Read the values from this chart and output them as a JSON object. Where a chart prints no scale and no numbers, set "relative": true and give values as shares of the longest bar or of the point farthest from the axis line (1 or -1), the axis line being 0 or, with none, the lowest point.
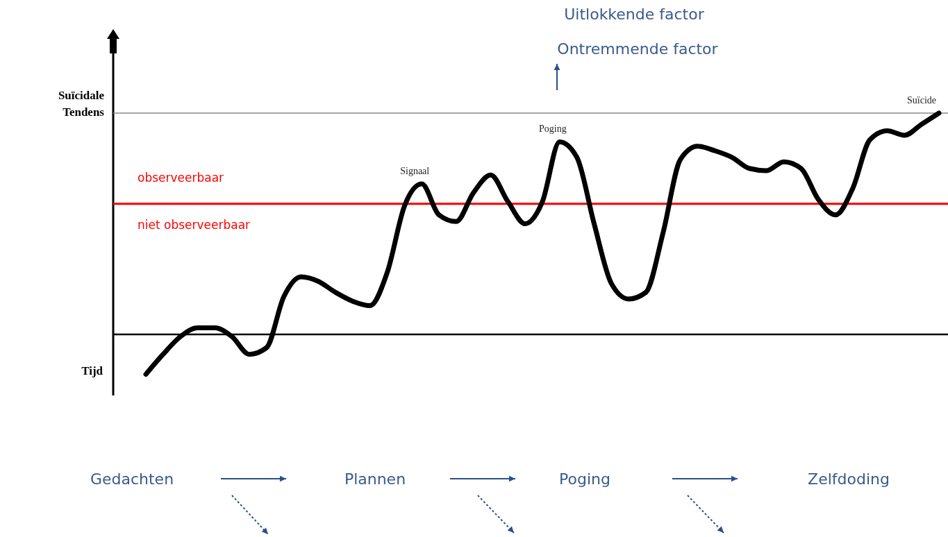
{
  "chart_data": {
    "type": "line",
    "relative": true,
    "xlabel": "Tijd",
    "ylabel": "Suïcidale Tendens",
    "categories": [
      null,
      null,
      null,
      null,
      null,
      null,
      null,
      null,
      null,
      null,
      null,
      null,
      null,
      null,
      null,
      null,
      null,
      null,
      null,
      null,
      null,
      null,
      null,
      null,
      null,
      null,
      null,
      null,
      null,
      null,
      null,
      null,
      null,
      null,
      null,
      null,
      null,
      null,
      null,
      null,
      null,
      null,
      null,
      null,
      null,
      null,
      null
    ],
    "series": [
      {
        "color": "#000000",
        "values": [
          -0.18,
          -0.09,
          -0.01,
          0.03,
          0.03,
          -0.01,
          -0.09,
          -0.06,
          0.17,
          0.26,
          0.24,
          0.19,
          0.15,
          0.13,
          0.28,
          0.58,
          0.68,
          0.54,
          0.51,
          0.64,
          0.72,
          0.6,
          0.5,
          0.6,
          0.87,
          0.8,
          0.5,
          0.23,
          0.16,
          0.19,
          0.46,
          0.79,
          0.85,
          0.83,
          0.8,
          0.75,
          0.74,
          0.78,
          0.75,
          0.61,
          0.54,
          0.66,
          0.88,
          0.92,
          0.9,
          0.95,
          1
        ]
      }
    ],
    "ref_lines": [
      {
        "axis": "y",
        "value": 1,
        "color": "#888888"
      },
      {
        "axis": "y",
        "value": 0.59,
        "color": "#ff0000"
      }
    ],
    "annotations": [
      {
        "text": "Signaal",
        "y": 0.68
      },
      {
        "text": "Poging",
        "y": 0.87
      },
      {
        "text": "Suïcide",
        "y": 1
      },
      "observeerbaar",
      "niet observeerbaar",
      "Uitlokkende factor",
      "Ontremmende factor",
      "Gedachten",
      "Plannen",
      "Poging",
      "Zelfdoding"
    ],
    "line_style": "solid"
  }
}
